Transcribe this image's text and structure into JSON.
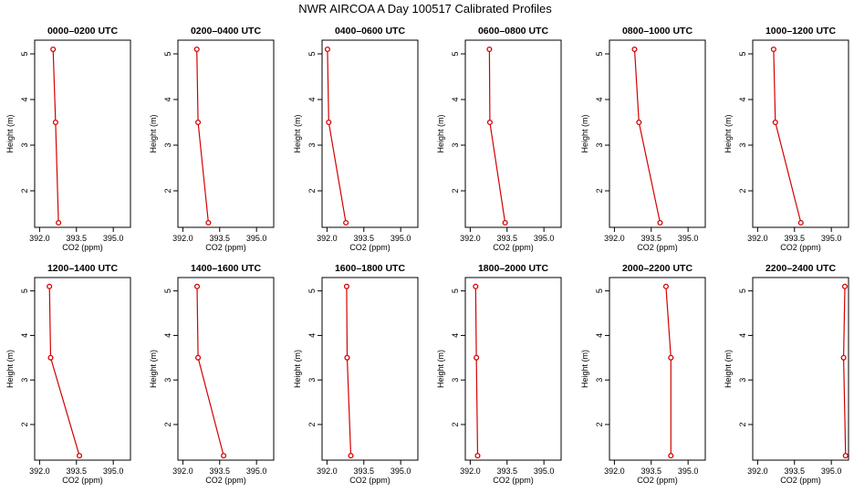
{
  "chart_data": {
    "type": "line",
    "title": "NWR AIRCOA A  Day 100517  Calibrated Profiles",
    "xlabel": "CO2 (ppm)",
    "ylabel": "Height (m)",
    "xlim": [
      391.8,
      395.7
    ],
    "ylim": [
      1.2,
      5.3
    ],
    "xticks": [
      392.0,
      393.5,
      395.0
    ],
    "xtick_labels": [
      "392.0",
      "393.5",
      "395.0"
    ],
    "yticks": [
      2,
      3,
      4,
      5
    ],
    "ytick_labels": [
      "2",
      "3",
      "4",
      "5"
    ],
    "line_color": "#d40000",
    "panels": [
      {
        "title": "0000–0200 UTC",
        "heights": [
          5.1,
          3.5,
          1.3
        ],
        "co2": [
          392.55,
          392.65,
          392.77
        ]
      },
      {
        "title": "0200–0400 UTC",
        "heights": [
          5.1,
          3.5,
          1.3
        ],
        "co2": [
          392.57,
          392.62,
          393.04
        ]
      },
      {
        "title": "0400–0600 UTC",
        "heights": [
          5.1,
          3.5,
          1.3
        ],
        "co2": [
          392.02,
          392.07,
          392.77
        ]
      },
      {
        "title": "0600–0800 UTC",
        "heights": [
          5.1,
          3.5,
          1.3
        ],
        "co2": [
          392.78,
          392.8,
          393.42
        ]
      },
      {
        "title": "0800–1000 UTC",
        "heights": [
          5.1,
          3.5,
          1.3
        ],
        "co2": [
          392.82,
          393.0,
          393.86
        ]
      },
      {
        "title": "1000–1200 UTC",
        "heights": [
          5.1,
          3.5,
          1.3
        ],
        "co2": [
          392.65,
          392.72,
          393.76
        ]
      },
      {
        "title": "1200–1400 UTC",
        "heights": [
          5.1,
          3.5,
          1.3
        ],
        "co2": [
          392.4,
          392.45,
          393.62
        ]
      },
      {
        "title": "1400–1600 UTC",
        "heights": [
          5.1,
          3.5,
          1.3
        ],
        "co2": [
          392.58,
          392.62,
          393.66
        ]
      },
      {
        "title": "1600–1800 UTC",
        "heights": [
          5.1,
          3.5,
          1.3
        ],
        "co2": [
          392.8,
          392.82,
          392.97
        ]
      },
      {
        "title": "1800–2000 UTC",
        "heights": [
          5.1,
          3.5,
          1.3
        ],
        "co2": [
          392.22,
          392.25,
          392.3
        ]
      },
      {
        "title": "2000–2200 UTC",
        "heights": [
          5.1,
          3.5,
          1.3
        ],
        "co2": [
          394.1,
          394.3,
          394.3
        ]
      },
      {
        "title": "2200–2400 UTC",
        "heights": [
          5.1,
          3.5,
          1.3
        ],
        "co2": [
          395.55,
          395.5,
          395.58
        ]
      }
    ]
  }
}
